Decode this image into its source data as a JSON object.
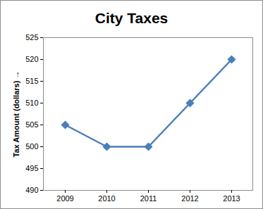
{
  "chart_data": {
    "type": "line",
    "title": "City Taxes",
    "y_label": "Tax Amount (dollars)",
    "categories": [
      "2009",
      "2010",
      "2011",
      "2012",
      "2013"
    ],
    "values": [
      505,
      500,
      500,
      510,
      520
    ],
    "color": "#4a7ebb",
    "marker": "diamond",
    "ylim": [
      490,
      525
    ],
    "yticks": [
      490,
      495,
      500,
      505,
      510,
      515,
      520,
      525
    ],
    "grid": false
  }
}
